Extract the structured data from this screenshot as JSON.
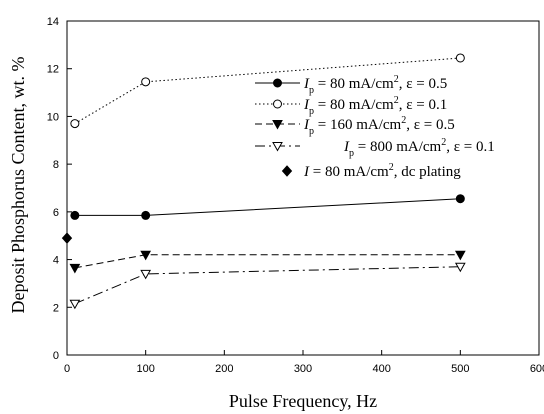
{
  "chart_data": {
    "type": "line",
    "xlabel": "Pulse Frequency, Hz",
    "ylabel": "Deposit Phosphorus Content, wt. %",
    "xlim": [
      0,
      600
    ],
    "ylim": [
      0,
      14
    ],
    "xticks": [
      0,
      100,
      200,
      300,
      400,
      500,
      600
    ],
    "yticks": [
      0,
      2,
      4,
      6,
      8,
      10,
      12,
      14
    ],
    "grid": false,
    "legend_position": "right",
    "series": [
      {
        "legend": {
          "main": "I",
          "sub": "p",
          "rest": " = 80 mA/cm",
          "sup": "2",
          "tail": ", ε = 0.5"
        },
        "marker": "filled-circle",
        "line": "solid",
        "x": [
          10,
          100,
          500
        ],
        "y": [
          5.85,
          5.85,
          6.55
        ]
      },
      {
        "legend": {
          "main": "I",
          "sub": "p",
          "rest": " = 80 mA/cm",
          "sup": "2",
          "tail": ", ε = 0.1"
        },
        "marker": "open-circle",
        "line": "dotted",
        "x": [
          10,
          100,
          500
        ],
        "y": [
          9.7,
          11.45,
          12.45
        ]
      },
      {
        "legend": {
          "main": "I",
          "sub": "p",
          "rest": " = 160 mA/cm",
          "sup": "2",
          "tail": ", ε = 0.5"
        },
        "marker": "filled-triangle-down",
        "line": "dashed",
        "x": [
          10,
          100,
          500
        ],
        "y": [
          3.65,
          4.2,
          4.2
        ]
      },
      {
        "legend": {
          "main": "I",
          "sub": "p",
          "rest": " = 800 mA/cm",
          "sup": "2",
          "tail": ", ε = 0.1"
        },
        "marker": "open-triangle-down",
        "line": "dash-dot",
        "x": [
          10,
          100,
          500
        ],
        "y": [
          2.15,
          3.4,
          3.7
        ]
      },
      {
        "legend": {
          "main": "I",
          "sub": "",
          "rest": " = 80 mA/cm",
          "sup": "2",
          "tail": ", dc plating"
        },
        "marker": "filled-diamond",
        "line": "none",
        "x": [
          0
        ],
        "y": [
          4.9
        ]
      }
    ]
  }
}
